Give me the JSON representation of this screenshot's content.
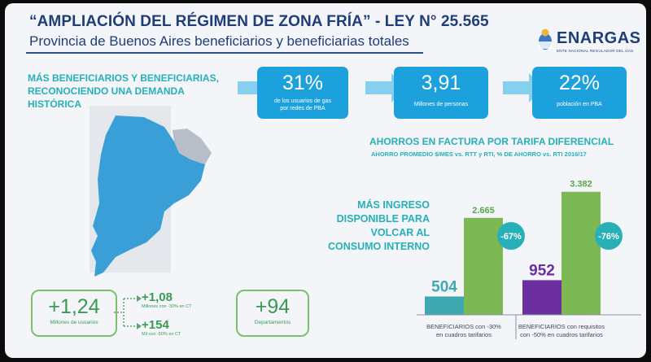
{
  "header": {
    "title": "“AMPLIACIÓN DEL RÉGIMEN DE ZONA FRÍA” - LEY N° 25.565",
    "subtitle": "Provincia de Buenos Aires beneficiarios y beneficiarias totales"
  },
  "logo": {
    "name": "ENARGAS",
    "tagline": "ENTE NACIONAL REGULADOR DEL GAS"
  },
  "headline": "MÁS BENEFICIARIOS Y BENEFICIARIAS, RECONOCIENDO UNA DEMANDA HISTÓRICA",
  "stats_top": [
    {
      "value": "31%",
      "caption_line1": "de los usuarios de gas",
      "caption_line2": "por redes de PBA"
    },
    {
      "value": "3,91",
      "caption_line1": "Millones de personas",
      "caption_line2": ""
    },
    {
      "value": "22%",
      "caption_line1": "población en PBA",
      "caption_line2": ""
    }
  ],
  "stats_bottom": {
    "main": {
      "value": "+1,24",
      "caption": "Millones de usuarios"
    },
    "sub1": {
      "value": "+1,08",
      "caption": "Millones con -30% en CT"
    },
    "sub2": {
      "value": "+154",
      "caption": "Mil con -50% en CT"
    },
    "departments": {
      "value": "+94",
      "caption": "Departamentos"
    }
  },
  "savings": {
    "title": "AHORROS EN FACTURA POR TARIFA DIFERENCIAL",
    "subtitle": "AHORRO PROMEDIO $/MES vs. RTT y RTI, % DE AHORRO vs. RTI 2016/17",
    "side_text": "MÁS INGRESO DISPONIBLE PARA VOLCAR AL CONSUMO INTERNO"
  },
  "chart_data": {
    "type": "bar",
    "categories": [
      "BENEFICIARIOS con -30% en cuadros tarifarios",
      "BENEFICIARIOS con requisitos con -50% en cuadros tarifarios"
    ],
    "series": [
      {
        "name": "",
        "values": [
          504,
          952
        ]
      },
      {
        "name": "",
        "values": [
          2665,
          3382
        ]
      }
    ],
    "value_labels": [
      "504",
      "2.665",
      "952",
      "3.382"
    ],
    "percent_badges": [
      "-67%",
      "-76%"
    ],
    "category_lines": [
      [
        "BENEFICIARIOS con -30%",
        "en cuadros tarifarios"
      ],
      [
        "BENEFICIARIOS con requisitos",
        "con -50% en cuadros tarifarios"
      ]
    ],
    "ylim": [
      0,
      3600
    ],
    "colors": {
      "small_bar_1": "#3fa9b2",
      "small_bar_2": "#6b2fa0",
      "large_bar": "#7cb955",
      "badge": "#27b0b8"
    }
  }
}
